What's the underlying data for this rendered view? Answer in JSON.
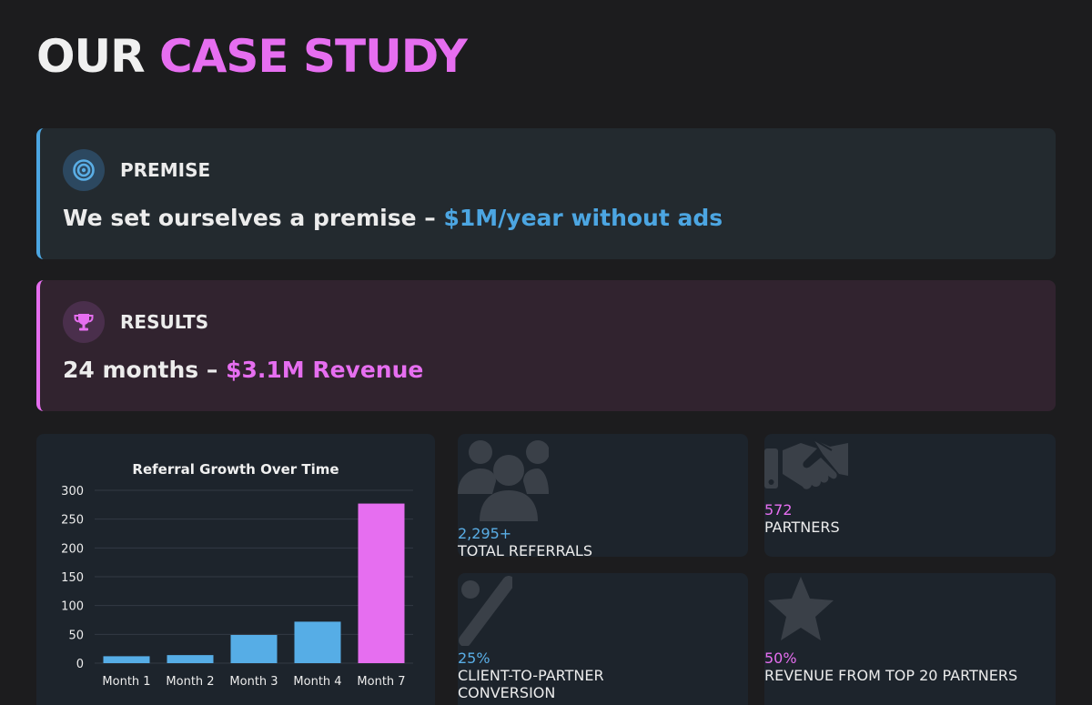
{
  "title": {
    "word1": "OUR",
    "word2": "CASE STUDY"
  },
  "premise": {
    "label": "PREMISE",
    "icon": "target-icon",
    "text": "We set ourselves a premise – ",
    "highlight": "$1M/year without ads"
  },
  "results": {
    "label": "RESULTS",
    "icon": "trophy-icon",
    "text": "24 months – ",
    "highlight": "$3.1M Revenue"
  },
  "stats": [
    {
      "value": "2,295+",
      "label": "TOTAL REFERRALS",
      "icon": "users-icon",
      "color": "#5aaee6"
    },
    {
      "value": "572",
      "label": "PARTNERS",
      "icon": "handshake-icon",
      "color": "#e66ef0"
    },
    {
      "value": "25%",
      "label_line1": "CLIENT-TO-PARTNER",
      "label_line2": "CONVERSION",
      "icon": "percent-icon",
      "color": "#5aaee6"
    },
    {
      "value": "50%",
      "label": "REVENUE FROM TOP 20 PARTNERS",
      "icon": "star-icon",
      "color": "#e66ef0"
    }
  ],
  "chart_data": {
    "type": "bar",
    "title": "Referral Growth Over Time",
    "categories": [
      "Month 1",
      "Month 2",
      "Month 3",
      "Month 4",
      "Month 7"
    ],
    "values": [
      12,
      14,
      49,
      72,
      277
    ],
    "colors": [
      "#56ade6",
      "#56ade6",
      "#56ade6",
      "#56ade6",
      "#e66ef0"
    ],
    "ylim": [
      0,
      300
    ],
    "yticks": [
      0,
      50,
      100,
      150,
      200,
      250,
      300
    ],
    "grid": true,
    "legend": "none"
  }
}
